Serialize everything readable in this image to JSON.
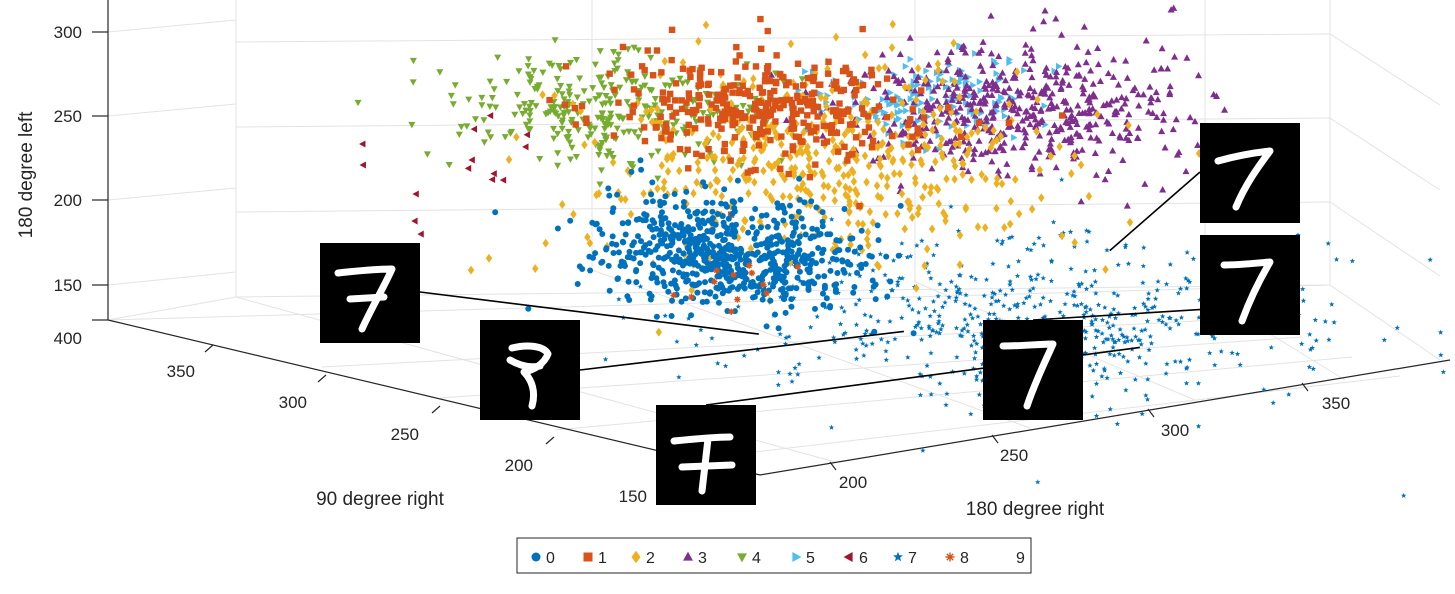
{
  "chart_data": {
    "type": "scatter",
    "projection": "3d",
    "grid": true,
    "legend_placement": "bottom-center",
    "xlabel": "180 degree right",
    "ylabel": "90 degree right",
    "zlabel": "180 degree left",
    "x_ticks": [
      "200",
      "250",
      "300",
      "350"
    ],
    "y_ticks": [
      "150",
      "200",
      "250",
      "300",
      "350",
      "400"
    ],
    "z_ticks": [
      "150",
      "200",
      "250",
      "300"
    ],
    "xlim": [
      170,
      390
    ],
    "ylim": [
      140,
      400
    ],
    "zlim": [
      140,
      320
    ],
    "series": [
      {
        "name": "0",
        "marker": "circle",
        "color": "#0072BD",
        "cluster": {
          "x": 228,
          "y": 300,
          "z": 224,
          "spread": [
            14,
            22,
            13
          ],
          "count": 700
        }
      },
      {
        "name": "1",
        "marker": "square",
        "color": "#D95319",
        "cluster": {
          "x": 248,
          "y": 312,
          "z": 300,
          "spread": [
            18,
            22,
            14
          ],
          "count": 360
        }
      },
      {
        "name": "2",
        "marker": "diamond",
        "color": "#EDB120",
        "cluster": {
          "x": 255,
          "y": 295,
          "z": 268,
          "spread": [
            28,
            30,
            26
          ],
          "count": 500
        }
      },
      {
        "name": "3",
        "marker": "triangle-up",
        "color": "#7E2F8E",
        "cluster": {
          "x": 300,
          "y": 275,
          "z": 295,
          "spread": [
            20,
            22,
            16
          ],
          "count": 520
        }
      },
      {
        "name": "4",
        "marker": "triangle-down",
        "color": "#77AC30",
        "cluster": {
          "x": 210,
          "y": 330,
          "z": 305,
          "spread": [
            18,
            22,
            12
          ],
          "count": 300
        }
      },
      {
        "name": "5",
        "marker": "triangle-right",
        "color": "#4DBEEE",
        "cluster": {
          "x": 285,
          "y": 290,
          "z": 302,
          "spread": [
            16,
            18,
            10
          ],
          "count": 160
        }
      },
      {
        "name": "6",
        "marker": "triangle-left",
        "color": "#A2142F",
        "cluster": {
          "x": 190,
          "y": 360,
          "z": 265,
          "spread": [
            8,
            14,
            20
          ],
          "count": 14
        }
      },
      {
        "name": "7",
        "marker": "star",
        "color": "#0072BD",
        "cluster": {
          "x": 260,
          "y": 215,
          "z": 205,
          "spread": [
            35,
            38,
            18
          ],
          "count": 560
        }
      },
      {
        "name": "8",
        "marker": "asterisk",
        "color": "#D95319",
        "cluster": {
          "x": 230,
          "y": 300,
          "z": 205,
          "spread": [
            10,
            10,
            8
          ],
          "count": 12
        }
      },
      {
        "name": "9",
        "marker": "none",
        "color": "#EDB120",
        "cluster": {
          "x": 0,
          "y": 0,
          "z": 0,
          "spread": [
            0,
            0,
            0
          ],
          "count": 0
        }
      }
    ],
    "annotations": [
      {
        "label": "digit-7-sample",
        "x": 300,
        "y": 235,
        "z": 226
      },
      {
        "label": "digit-7-sample",
        "x": 318,
        "y": 210,
        "z": 208
      },
      {
        "label": "digit-7-sample",
        "x": 302,
        "y": 185,
        "z": 210
      },
      {
        "label": "digit-7-sample",
        "x": 205,
        "y": 255,
        "z": 200
      },
      {
        "label": "digit-7-sample",
        "x": 232,
        "y": 230,
        "z": 202
      },
      {
        "label": "digit-7-sample",
        "x": 258,
        "y": 165,
        "z": 208
      }
    ]
  },
  "colors": {
    "axis": "#262626",
    "grid": "#e3e3e3",
    "thumb_bg": "#000000",
    "digit": "#ffffff"
  }
}
